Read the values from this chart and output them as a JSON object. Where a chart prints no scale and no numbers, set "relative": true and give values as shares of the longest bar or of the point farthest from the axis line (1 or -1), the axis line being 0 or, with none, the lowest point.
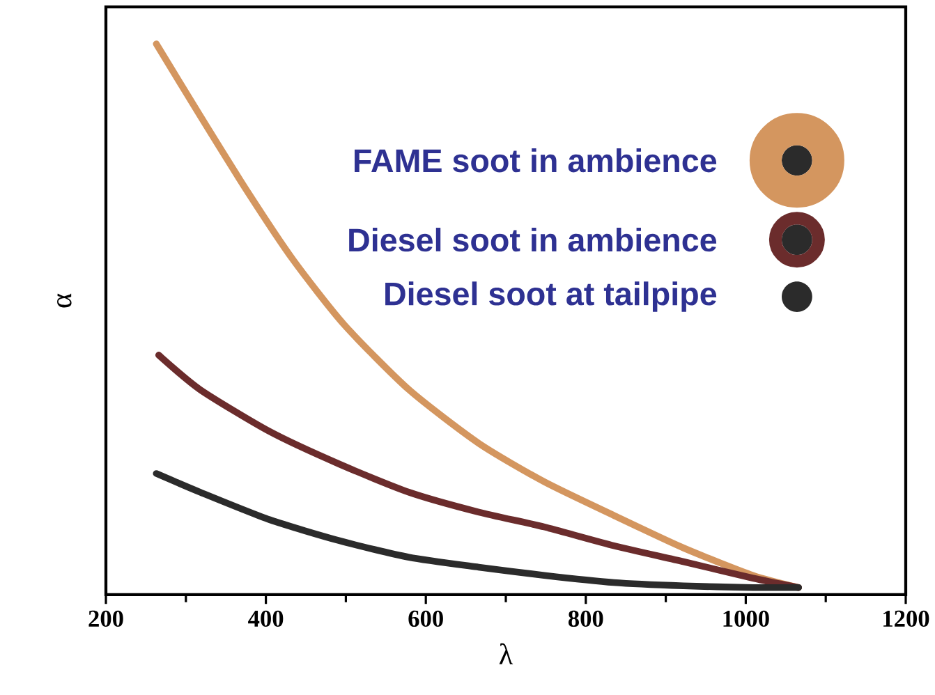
{
  "chart_data": {
    "type": "line",
    "xlabel": "λ",
    "ylabel": "α",
    "relative": true,
    "xlim": [
      200,
      1200
    ],
    "xticks": [
      200,
      400,
      600,
      800,
      1000,
      1200
    ],
    "legend": "top right",
    "grid": false,
    "marker": "none",
    "line_style": "solid",
    "series": [
      {
        "name": "FAME soot in ambience",
        "color": "#d4965f",
        "x": [
          263,
          318,
          376,
          434,
          498,
          579,
          666,
          748,
          835,
          922,
          1009,
          1066
        ],
        "values": [
          1.0,
          0.869,
          0.734,
          0.608,
          0.49,
          0.372,
          0.275,
          0.205,
          0.144,
          0.085,
          0.035,
          0.013
        ]
      },
      {
        "name": "Diesel soot in ambience",
        "color": "#6b2c2c",
        "x": [
          266,
          318,
          405,
          492,
          579,
          666,
          748,
          835,
          922,
          1009,
          1066
        ],
        "values": [
          0.435,
          0.372,
          0.296,
          0.237,
          0.186,
          0.15,
          0.123,
          0.089,
          0.06,
          0.03,
          0.013
        ]
      },
      {
        "name": "Diesel soot at tailpipe",
        "color": "#2b2b2b",
        "x": [
          263,
          318,
          405,
          492,
          579,
          666,
          748,
          835,
          922,
          1009,
          1066
        ],
        "values": [
          0.22,
          0.186,
          0.136,
          0.098,
          0.068,
          0.05,
          0.035,
          0.022,
          0.016,
          0.013,
          0.013
        ]
      }
    ]
  }
}
